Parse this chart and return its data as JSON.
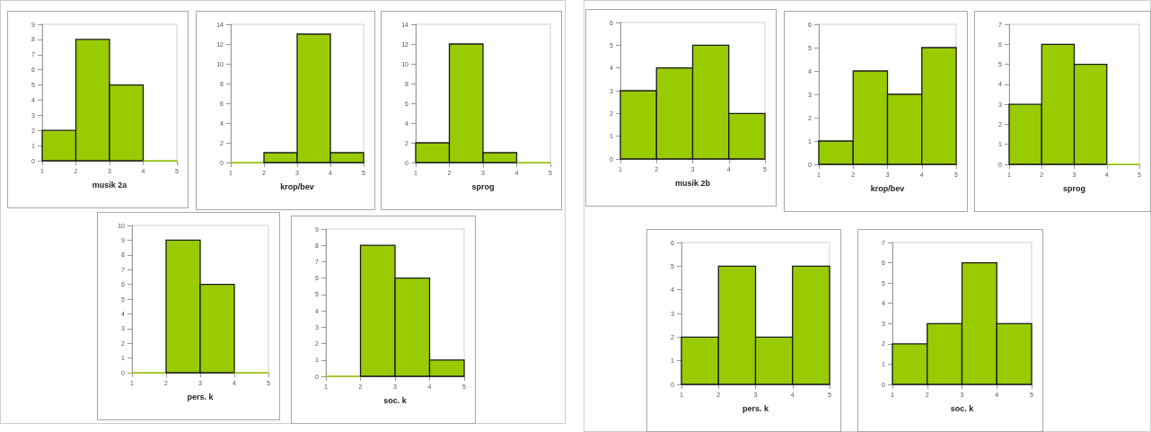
{
  "chart_data": [
    {
      "type": "histogram",
      "xlabel": "musik 2a",
      "bins": [
        1,
        2,
        3,
        4,
        5
      ],
      "values": [
        2,
        8,
        5,
        0
      ],
      "color": "#99cc00",
      "xlim": [
        1,
        5
      ],
      "xticks": [
        1,
        2,
        3,
        4,
        5
      ],
      "ylim": [
        0,
        9
      ],
      "yticks": [
        0,
        1,
        2,
        3,
        4,
        5,
        6,
        7,
        8,
        9
      ]
    },
    {
      "type": "histogram",
      "xlabel": "krop/bev",
      "bins": [
        1,
        2,
        3,
        4,
        5
      ],
      "values": [
        0,
        1,
        13,
        1
      ],
      "color": "#99cc00",
      "xlim": [
        1,
        5
      ],
      "xticks": [
        1,
        2,
        3,
        4,
        5
      ],
      "ylim": [
        0,
        14
      ],
      "yticks": [
        0,
        2,
        4,
        6,
        8,
        10,
        12,
        14
      ]
    },
    {
      "type": "histogram",
      "xlabel": "sprog",
      "bins": [
        1,
        2,
        3,
        4,
        5
      ],
      "values": [
        2,
        12,
        1,
        0
      ],
      "color": "#99cc00",
      "xlim": [
        1,
        5
      ],
      "xticks": [
        1,
        2,
        3,
        4,
        5
      ],
      "ylim": [
        0,
        14
      ],
      "yticks": [
        0,
        2,
        4,
        6,
        8,
        10,
        12,
        14
      ]
    },
    {
      "type": "histogram",
      "xlabel": "musik 2b",
      "bins": [
        1,
        2,
        3,
        4,
        5
      ],
      "values": [
        3,
        4,
        5,
        2
      ],
      "color": "#99cc00",
      "xlim": [
        1,
        5
      ],
      "xticks": [
        1,
        2,
        3,
        4,
        5
      ],
      "ylim": [
        0,
        6
      ],
      "yticks": [
        0,
        1,
        2,
        3,
        4,
        5,
        6
      ]
    },
    {
      "type": "histogram",
      "xlabel": "krop/bev",
      "bins": [
        1,
        2,
        3,
        4,
        5
      ],
      "values": [
        1,
        4,
        3,
        5
      ],
      "color": "#99cc00",
      "xlim": [
        1,
        5
      ],
      "xticks": [
        1,
        2,
        3,
        4,
        5
      ],
      "ylim": [
        0,
        6
      ],
      "yticks": [
        0,
        1,
        2,
        3,
        4,
        5,
        6
      ]
    },
    {
      "type": "histogram",
      "xlabel": "sprog",
      "bins": [
        1,
        2,
        3,
        4,
        5
      ],
      "values": [
        3,
        6,
        5,
        0
      ],
      "color": "#99cc00",
      "xlim": [
        1,
        5
      ],
      "xticks": [
        1,
        2,
        3,
        4,
        5
      ],
      "ylim": [
        0,
        7
      ],
      "yticks": [
        0,
        1,
        2,
        3,
        4,
        5,
        6,
        7
      ]
    },
    {
      "type": "histogram",
      "xlabel": "pers. k",
      "bins": [
        1,
        2,
        3,
        4,
        5
      ],
      "values": [
        0,
        9,
        6,
        0
      ],
      "color": "#99cc00",
      "xlim": [
        1,
        5
      ],
      "xticks": [
        1,
        2,
        3,
        4,
        5
      ],
      "ylim": [
        0,
        10
      ],
      "yticks": [
        0,
        1,
        2,
        3,
        4,
        5,
        6,
        7,
        8,
        9,
        10
      ]
    },
    {
      "type": "histogram",
      "xlabel": "soc. k",
      "bins": [
        1,
        2,
        3,
        4,
        5
      ],
      "values": [
        0,
        8,
        6,
        1
      ],
      "color": "#99cc00",
      "xlim": [
        1,
        5
      ],
      "xticks": [
        1,
        2,
        3,
        4,
        5
      ],
      "ylim": [
        0,
        9
      ],
      "yticks": [
        0,
        1,
        2,
        3,
        4,
        5,
        6,
        7,
        8,
        9
      ]
    },
    {
      "type": "histogram",
      "xlabel": "pers. k",
      "bins": [
        1,
        2,
        3,
        4,
        5
      ],
      "values": [
        2,
        5,
        2,
        5
      ],
      "color": "#99cc00",
      "xlim": [
        1,
        5
      ],
      "xticks": [
        1,
        2,
        3,
        4,
        5
      ],
      "ylim": [
        0,
        6
      ],
      "yticks": [
        0,
        1,
        2,
        3,
        4,
        5,
        6
      ]
    },
    {
      "type": "histogram",
      "xlabel": "soc. k",
      "bins": [
        1,
        2,
        3,
        4,
        5
      ],
      "values": [
        2,
        3,
        6,
        3
      ],
      "color": "#99cc00",
      "xlim": [
        1,
        5
      ],
      "xticks": [
        1,
        2,
        3,
        4,
        5
      ],
      "ylim": [
        0,
        7
      ],
      "yticks": [
        0,
        1,
        2,
        3,
        4,
        5,
        6,
        7
      ]
    }
  ]
}
